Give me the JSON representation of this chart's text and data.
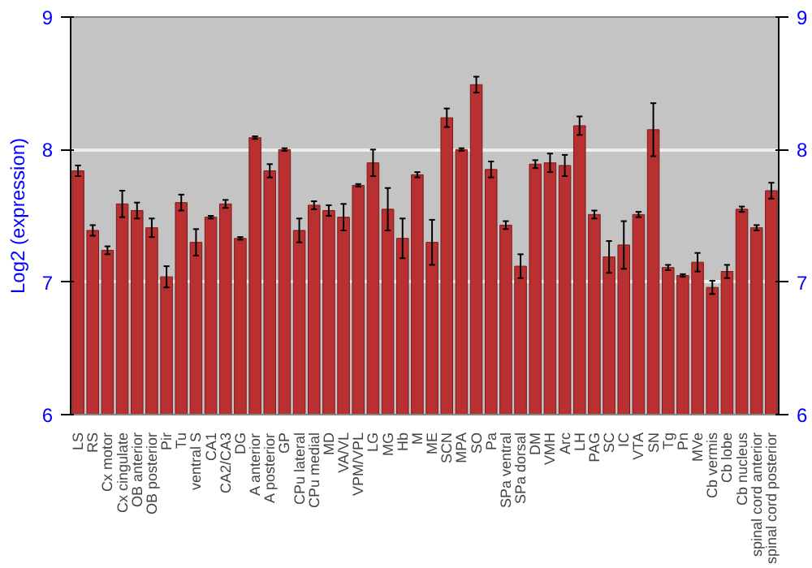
{
  "chart_data": {
    "type": "bar",
    "ylabel": "Log2 (expression)",
    "categories": [
      "LS",
      "RS",
      "Cx motor",
      "Cx cingulate",
      "OB anterior",
      "OB posterior",
      "Pir",
      "Tu",
      "ventral S",
      "CA1",
      "CA2/CA3",
      "DG",
      "A anterior",
      "A posterior",
      "GP",
      "CPu lateral",
      "CPu medial",
      "MD",
      "VA/VL",
      "VPM/VPL",
      "LG",
      "MG",
      "Hb",
      "M",
      "ME",
      "SCN",
      "MPA",
      "SO",
      "Pa",
      "SPa ventral",
      "SPa dorsal",
      "DM",
      "VMH",
      "Arc",
      "LH",
      "PAG",
      "SC",
      "IC",
      "VTA",
      "SN",
      "Tg",
      "Pn",
      "MVe",
      "Cb vermis",
      "Cb lobe",
      "Cb nucleus",
      "spinal cord anterior",
      "spinal cord posterior"
    ],
    "values": [
      7.84,
      7.39,
      7.24,
      7.59,
      7.54,
      7.41,
      7.04,
      7.6,
      7.3,
      7.49,
      7.59,
      7.33,
      8.09,
      7.84,
      8.0,
      7.39,
      7.58,
      7.54,
      7.49,
      7.73,
      7.9,
      7.55,
      7.33,
      7.81,
      7.3,
      8.24,
      8.0,
      8.49,
      7.85,
      7.43,
      7.12,
      7.89,
      7.9,
      7.88,
      8.18,
      7.51,
      7.19,
      7.28,
      7.51,
      8.15,
      7.11,
      7.05,
      7.15,
      6.96,
      7.08,
      7.55,
      7.41,
      7.69
    ],
    "errors": [
      0.04,
      0.04,
      0.03,
      0.1,
      0.06,
      0.07,
      0.08,
      0.06,
      0.1,
      0.01,
      0.03,
      0.01,
      0.01,
      0.05,
      0.01,
      0.09,
      0.03,
      0.04,
      0.1,
      0.01,
      0.1,
      0.16,
      0.15,
      0.02,
      0.17,
      0.07,
      0.01,
      0.06,
      0.06,
      0.03,
      0.09,
      0.03,
      0.07,
      0.08,
      0.07,
      0.03,
      0.12,
      0.18,
      0.02,
      0.2,
      0.02,
      0.01,
      0.07,
      0.05,
      0.05,
      0.02,
      0.02,
      0.06
    ],
    "color": "#b83030",
    "ylim": [
      6,
      9
    ],
    "yticks": [
      6,
      7,
      8,
      9
    ],
    "y2lim": [
      6,
      9
    ],
    "y2ticks": [
      6,
      7,
      8,
      9
    ],
    "grid": "y"
  }
}
